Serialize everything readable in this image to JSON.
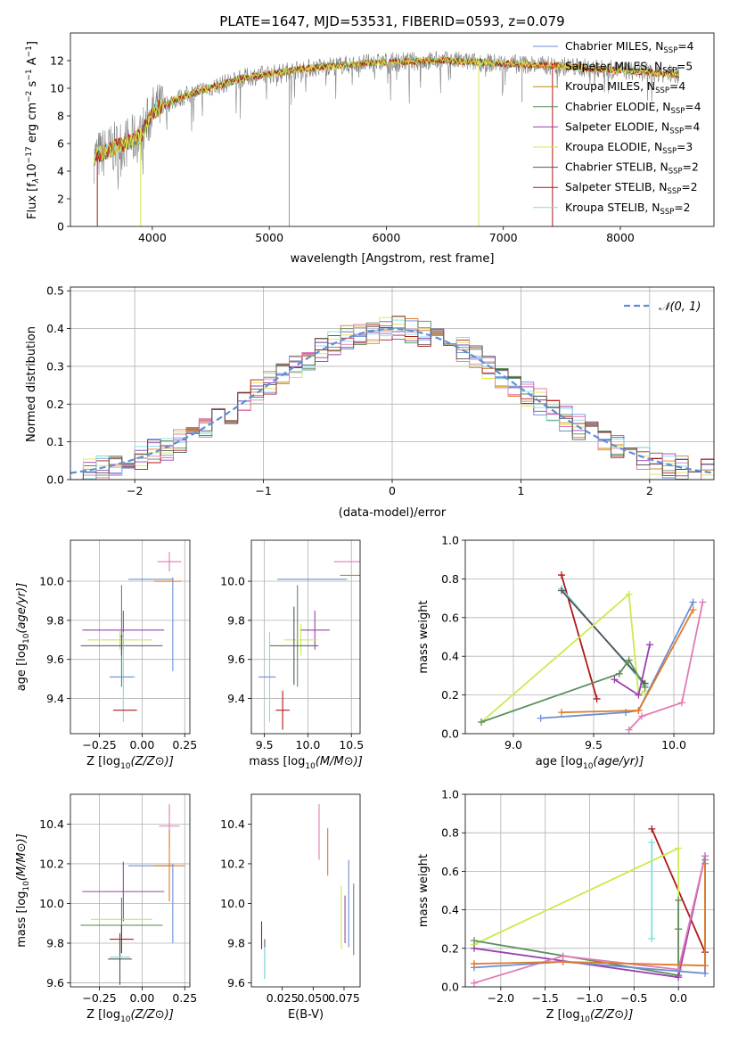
{
  "figure_title": "PLATE=1647, MJD=53531, FIBERID=0593, z=0.079",
  "colors": {
    "Chabrier MILES": "#6a8fd6",
    "Salpeter MILES": "#e07b28",
    "Kroupa MILES": "#c8860d",
    "Chabrier ELODIE": "#5a8a5a",
    "Salpeter ELODIE": "#9a3fb0",
    "Kroupa ELODIE": "#d8e84a",
    "Chabrier STELIB": "#555555",
    "Salpeter STELIB": "#b01818",
    "Kroupa STELIB": "#7fdde0",
    "data": "#808080",
    "gauss": "#5b8fd9",
    "pink": "#e07bb5",
    "green2": "#5e8f5e",
    "lime": "#c8ec50"
  },
  "chart_data": [
    {
      "id": "spectrum",
      "type": "line",
      "xlabel": "wavelength [Angstrom, rest frame]",
      "ylabel": "Flux [f",
      "xlim": [
        3300,
        8800
      ],
      "ylim": [
        0,
        14
      ],
      "xticks": [
        4000,
        5000,
        6000,
        7000,
        8000
      ],
      "yticks": [
        0,
        2,
        4,
        6,
        8,
        10,
        12
      ],
      "legend": {
        "placement": "right",
        "entries": [
          {
            "name": "Chabrier MILES, N",
            "n": "4"
          },
          {
            "name": "Salpeter MILES, N",
            "n": "5"
          },
          {
            "name": "Kroupa MILES, N",
            "n": "4"
          },
          {
            "name": "Chabrier ELODIE, N",
            "n": "4"
          },
          {
            "name": "Salpeter ELODIE, N",
            "n": "4"
          },
          {
            "name": "Kroupa ELODIE, N",
            "n": "3"
          },
          {
            "name": "Chabrier STELIB, N",
            "n": "2"
          },
          {
            "name": "Salpeter STELIB, N",
            "n": "2"
          },
          {
            "name": "Kroupa STELIB, N",
            "n": "2"
          }
        ]
      },
      "continuum": {
        "x": [
          3500,
          3700,
          3900,
          4000,
          4200,
          4400,
          4600,
          4800,
          5000,
          5200,
          5500,
          6000,
          6500,
          7000,
          7500,
          8000,
          8500
        ],
        "y": [
          5.0,
          5.8,
          6.5,
          8.3,
          9.2,
          9.8,
          10.3,
          10.8,
          11.0,
          11.3,
          11.6,
          11.9,
          12.0,
          11.8,
          11.6,
          11.3,
          11.0
        ]
      },
      "model_dropouts": [
        {
          "x": 3530,
          "y_from": 5.0
        },
        {
          "x": 3900,
          "y_from": 6.8
        },
        {
          "x": 6790,
          "y_from": 12.0
        },
        {
          "x": 7420,
          "y_from": 11.6
        }
      ],
      "data_dips": [
        {
          "x": 5170,
          "y": 0.0
        },
        {
          "x": 6290,
          "y": 10.5
        },
        {
          "x": 7160,
          "y": 9.0
        }
      ]
    },
    {
      "id": "residuals",
      "type": "step",
      "xlabel": "(data-model)/error",
      "ylabel": "Normed distribution",
      "xlim": [
        -2.5,
        2.5
      ],
      "ylim": [
        0,
        0.51
      ],
      "xticks": [
        -2,
        -1,
        0,
        1,
        2
      ],
      "xticklabels": [
        "−2",
        "−1",
        "0",
        "1",
        "2"
      ],
      "yticks": [
        0.0,
        0.1,
        0.2,
        0.3,
        0.4,
        0.5
      ],
      "yticklabels": [
        "0.0",
        "0.1",
        "0.2",
        "0.3",
        "0.4",
        "0.5"
      ],
      "legend": {
        "placement": "upper right",
        "label": "𝒩(0, 1)"
      },
      "bin_width": 0.1,
      "gaussian": {
        "mu": 0,
        "sigma": 1
      }
    },
    {
      "id": "z_age",
      "type": "errorbar",
      "xlabel": "Z [log",
      "ylabel": "age  [log",
      "xlim": [
        -0.42,
        0.28
      ],
      "ylim": [
        9.22,
        10.21
      ],
      "xticks": [
        -0.25,
        0.0,
        0.25
      ],
      "xticklabels": [
        "−0.25",
        "0.00",
        "0.25"
      ],
      "yticks": [
        9.4,
        9.6,
        9.8,
        10.0
      ],
      "yticklabels": [
        "9.4",
        "9.6",
        "9.8",
        "10.0"
      ],
      "points": [
        {
          "c": "pink",
          "x": 0.16,
          "y": 10.1,
          "xerr": 0.07,
          "yerr": 0.05
        },
        {
          "c": "Chabrier MILES",
          "x": 0.18,
          "y": 9.78,
          "xerr": 0.0,
          "yerr": 0.24
        },
        {
          "c": "Chabrier MILES",
          "x": 0.05,
          "y": 10.01,
          "xerr": 0.13,
          "yerr": 0.0
        },
        {
          "c": "Salpeter MILES",
          "x": 0.15,
          "y": 10.0,
          "xerr": 0.08,
          "yerr": 0.0
        },
        {
          "c": "green2",
          "x": -0.12,
          "y": 9.72,
          "xerr": 0.01,
          "yerr": 0.26
        },
        {
          "c": "Salpeter ELODIE",
          "x": -0.11,
          "y": 9.75,
          "xerr": 0.24,
          "yerr": 0.1
        },
        {
          "c": "lime",
          "x": -0.13,
          "y": 9.7,
          "xerr": 0.19,
          "yerr": 0.05
        },
        {
          "c": "Chabrier STELIB",
          "x": -0.12,
          "y": 9.67,
          "xerr": 0.24,
          "yerr": 0.05
        },
        {
          "c": "Kroupa STELIB",
          "x": -0.11,
          "y": 9.51,
          "xerr": 0.07,
          "yerr": 0.23
        },
        {
          "c": "Chabrier MILES",
          "x": -0.12,
          "y": 9.51,
          "xerr": 0.07,
          "yerr": 0.0
        },
        {
          "c": "Salpeter STELIB",
          "x": -0.1,
          "y": 9.34,
          "xerr": 0.07,
          "yerr": 0.0
        }
      ]
    },
    {
      "id": "mass_age",
      "type": "errorbar",
      "xlabel": "mass [log",
      "ylabel": "",
      "xlim": [
        9.35,
        10.6
      ],
      "ylim": [
        9.22,
        10.21
      ],
      "xticks": [
        9.5,
        10.0,
        10.5
      ],
      "xticklabels": [
        "9.5",
        "10.0",
        "10.5"
      ],
      "yticks": [
        9.4,
        9.6,
        9.8,
        10.0
      ],
      "yticklabels": [
        "9.4",
        "9.6",
        "9.8",
        "10.0"
      ],
      "points": [
        {
          "c": "pink",
          "x": 10.7,
          "y": 10.1,
          "xerr": 0.4,
          "yerr": 0.07
        },
        {
          "c": "Chabrier MILES",
          "x": 10.05,
          "y": 10.01,
          "xerr": 0.4,
          "yerr": 0.0
        },
        {
          "c": "Salpeter MILES",
          "x": 10.67,
          "y": 10.03,
          "xerr": 0.3,
          "yerr": 0.1
        },
        {
          "c": "green2",
          "x": 9.88,
          "y": 9.72,
          "xerr": 0.0,
          "yerr": 0.26
        },
        {
          "c": "Salpeter ELODIE",
          "x": 10.08,
          "y": 9.75,
          "xerr": 0.17,
          "yerr": 0.1
        },
        {
          "c": "lime",
          "x": 9.92,
          "y": 9.7,
          "xerr": 0.19,
          "yerr": 0.08
        },
        {
          "c": "Chabrier STELIB",
          "x": 9.84,
          "y": 9.67,
          "xerr": 0.28,
          "yerr": 0.2
        },
        {
          "c": "Kroupa STELIB",
          "x": 9.56,
          "y": 9.51,
          "xerr": 0.0,
          "yerr": 0.23
        },
        {
          "c": "Chabrier MILES",
          "x": 9.53,
          "y": 9.51,
          "xerr": 0.1,
          "yerr": 0.0
        },
        {
          "c": "Salpeter STELIB",
          "x": 9.71,
          "y": 9.34,
          "xerr": 0.08,
          "yerr": 0.1
        }
      ]
    },
    {
      "id": "age_weight",
      "type": "line",
      "xlabel": "age  [log",
      "ylabel": "mass weight",
      "xlim": [
        8.7,
        10.25
      ],
      "ylim": [
        0,
        1
      ],
      "xticks": [
        9.0,
        9.5,
        10.0
      ],
      "xticklabels": [
        "9.0",
        "9.5",
        "10.0"
      ],
      "yticks": [
        0.0,
        0.2,
        0.4,
        0.6,
        0.8,
        1.0
      ],
      "yticklabels": [
        "0.0",
        "0.2",
        "0.4",
        "0.6",
        "0.8",
        "1.0"
      ],
      "series": [
        {
          "c": "Salpeter STELIB",
          "x": [
            9.3,
            9.52
          ],
          "y": [
            0.82,
            0.18
          ]
        },
        {
          "c": "Kroupa STELIB",
          "x": [
            9.3,
            9.82
          ],
          "y": [
            0.75,
            0.25
          ]
        },
        {
          "c": "Chabrier STELIB",
          "x": [
            9.3,
            9.82
          ],
          "y": [
            0.74,
            0.26
          ]
        },
        {
          "c": "lime",
          "x": [
            8.8,
            9.72,
            9.78,
            9.82
          ],
          "y": [
            0.06,
            0.72,
            0.2,
            0.22
          ]
        },
        {
          "c": "green2",
          "x": [
            8.8,
            9.66,
            9.72,
            9.82
          ],
          "y": [
            0.06,
            0.31,
            0.38,
            0.24
          ]
        },
        {
          "c": "Salpeter ELODIE",
          "x": [
            9.63,
            9.78,
            9.85
          ],
          "y": [
            0.28,
            0.2,
            0.46
          ]
        },
        {
          "c": "pink",
          "x": [
            9.72,
            9.8,
            10.05,
            10.18
          ],
          "y": [
            0.02,
            0.09,
            0.16,
            0.68
          ]
        },
        {
          "c": "Chabrier MILES",
          "x": [
            9.17,
            9.7,
            9.78,
            10.12
          ],
          "y": [
            0.08,
            0.11,
            0.12,
            0.68
          ]
        },
        {
          "c": "Salpeter MILES",
          "x": [
            9.3,
            9.78,
            10.12
          ],
          "y": [
            0.11,
            0.12,
            0.64
          ]
        }
      ]
    },
    {
      "id": "z_mass",
      "type": "errorbar",
      "xlabel": "Z [log",
      "ylabel": "mass [log",
      "xlim": [
        -0.42,
        0.28
      ],
      "ylim": [
        9.58,
        10.55
      ],
      "xticks": [
        -0.25,
        0.0,
        0.25
      ],
      "xticklabels": [
        "−0.25",
        "0.00",
        "0.25"
      ],
      "yticks": [
        9.6,
        9.8,
        10.0,
        10.2,
        10.4
      ],
      "yticklabels": [
        "9.6",
        "9.8",
        "10.0",
        "10.2",
        "10.4"
      ],
      "points": [
        {
          "c": "pink",
          "x": 0.16,
          "y": 10.39,
          "xerr": 0.06,
          "yerr": 0.11
        },
        {
          "c": "Chabrier MILES",
          "x": 0.18,
          "y": 10.0,
          "xerr": 0.0,
          "yerr": 0.2
        },
        {
          "c": "Chabrier MILES",
          "x": 0.05,
          "y": 10.19,
          "xerr": 0.13,
          "yerr": 0.0
        },
        {
          "c": "Salpeter MILES",
          "x": 0.16,
          "y": 10.19,
          "xerr": 0.09,
          "yerr": 0.18
        },
        {
          "c": "Salpeter ELODIE",
          "x": -0.11,
          "y": 10.06,
          "xerr": 0.24,
          "yerr": 0.15
        },
        {
          "c": "lime",
          "x": -0.12,
          "y": 9.92,
          "xerr": 0.18,
          "yerr": 0.0
        },
        {
          "c": "green2",
          "x": -0.12,
          "y": 9.89,
          "xerr": 0.24,
          "yerr": 0.14
        },
        {
          "c": "Salpeter STELIB",
          "x": -0.12,
          "y": 9.82,
          "xerr": 0.07,
          "yerr": 0.07
        },
        {
          "c": "Chabrier STELIB",
          "x": -0.13,
          "y": 9.72,
          "xerr": 0.07,
          "yerr": 0.13
        },
        {
          "c": "Kroupa STELIB",
          "x": -0.13,
          "y": 9.73,
          "xerr": 0.06,
          "yerr": 0.0
        }
      ]
    },
    {
      "id": "ebv_mass",
      "type": "errorbar",
      "xlabel": "E(B-V)",
      "ylabel": "",
      "xlim": [
        0.0,
        0.088
      ],
      "ylim": [
        9.58,
        10.55
      ],
      "xticks": [
        0.025,
        0.05,
        0.075
      ],
      "xticklabels": [
        "0.025",
        "0.050",
        "0.075"
      ],
      "yticks": [
        9.6,
        9.8,
        10.0,
        10.2,
        10.4
      ],
      "yticklabels": [
        "9.6",
        "9.8",
        "10.0",
        "10.2",
        "10.4"
      ],
      "points": [
        {
          "c": "pink",
          "x": 0.0548,
          "y": 10.36,
          "xerr": 0,
          "yerr": 0.14
        },
        {
          "c": "Salpeter MILES",
          "x": 0.0618,
          "y": 10.26,
          "xerr": 0,
          "yerr": 0.12
        },
        {
          "c": "lime",
          "x": 0.0728,
          "y": 9.93,
          "xerr": 0,
          "yerr": 0.16
        },
        {
          "c": "Chabrier MILES",
          "x": 0.0788,
          "y": 10.0,
          "xerr": 0,
          "yerr": 0.22
        },
        {
          "c": "green2",
          "x": 0.0828,
          "y": 9.92,
          "xerr": 0,
          "yerr": 0.18
        },
        {
          "c": "Salpeter ELODIE",
          "x": 0.0758,
          "y": 9.92,
          "xerr": 0,
          "yerr": 0.12
        },
        {
          "c": "Salpeter STELIB",
          "x": 0.0083,
          "y": 9.84,
          "xerr": 0,
          "yerr": 0.07
        },
        {
          "c": "Chabrier STELIB",
          "x": 0.0108,
          "y": 9.72,
          "xerr": 0,
          "yerr": 0.1
        },
        {
          "c": "Kroupa STELIB",
          "x": 0.0108,
          "y": 9.7,
          "xerr": 0,
          "yerr": 0.08
        }
      ]
    },
    {
      "id": "z_weight",
      "type": "line",
      "xlabel": "Z [log",
      "ylabel": "mass weight",
      "xlim": [
        -2.4,
        0.4
      ],
      "ylim": [
        0,
        1
      ],
      "xticks": [
        -2.0,
        -1.5,
        -1.0,
        -0.5,
        0.0
      ],
      "xticklabels": [
        "−2.0",
        "−1.5",
        "−1.0",
        "−0.5",
        "0.0"
      ],
      "yticks": [
        0.0,
        0.2,
        0.4,
        0.6,
        0.8,
        1.0
      ],
      "yticklabels": [
        "0.0",
        "0.2",
        "0.4",
        "0.6",
        "0.8",
        "1.0"
      ],
      "series": [
        {
          "c": "Salpeter STELIB",
          "x": [
            -0.3,
            0.3
          ],
          "y": [
            0.82,
            0.18
          ]
        },
        {
          "c": "Kroupa STELIB",
          "x": [
            -0.3,
            -0.3
          ],
          "y": [
            0.75,
            0.25
          ]
        },
        {
          "c": "lime",
          "x": [
            -2.3,
            0.0,
            0.0,
            0.0
          ],
          "y": [
            0.22,
            0.72,
            0.06,
            0.3
          ]
        },
        {
          "c": "green2",
          "x": [
            -2.3,
            0.0,
            0.0,
            0.0
          ],
          "y": [
            0.24,
            0.06,
            0.3,
            0.45
          ]
        },
        {
          "c": "Salpeter ELODIE",
          "x": [
            -2.3,
            0.0,
            0.3
          ],
          "y": [
            0.2,
            0.05,
            0.68
          ]
        },
        {
          "c": "pink",
          "x": [
            -2.3,
            -1.3,
            0.0,
            0.3
          ],
          "y": [
            0.02,
            0.16,
            0.09,
            0.68
          ]
        },
        {
          "c": "Chabrier MILES",
          "x": [
            -2.3,
            -1.3,
            0.3,
            0.3
          ],
          "y": [
            0.1,
            0.13,
            0.07,
            0.66
          ]
        },
        {
          "c": "Salpeter MILES",
          "x": [
            -2.3,
            -1.3,
            0.3,
            0.3
          ],
          "y": [
            0.12,
            0.13,
            0.11,
            0.64
          ]
        }
      ]
    }
  ]
}
